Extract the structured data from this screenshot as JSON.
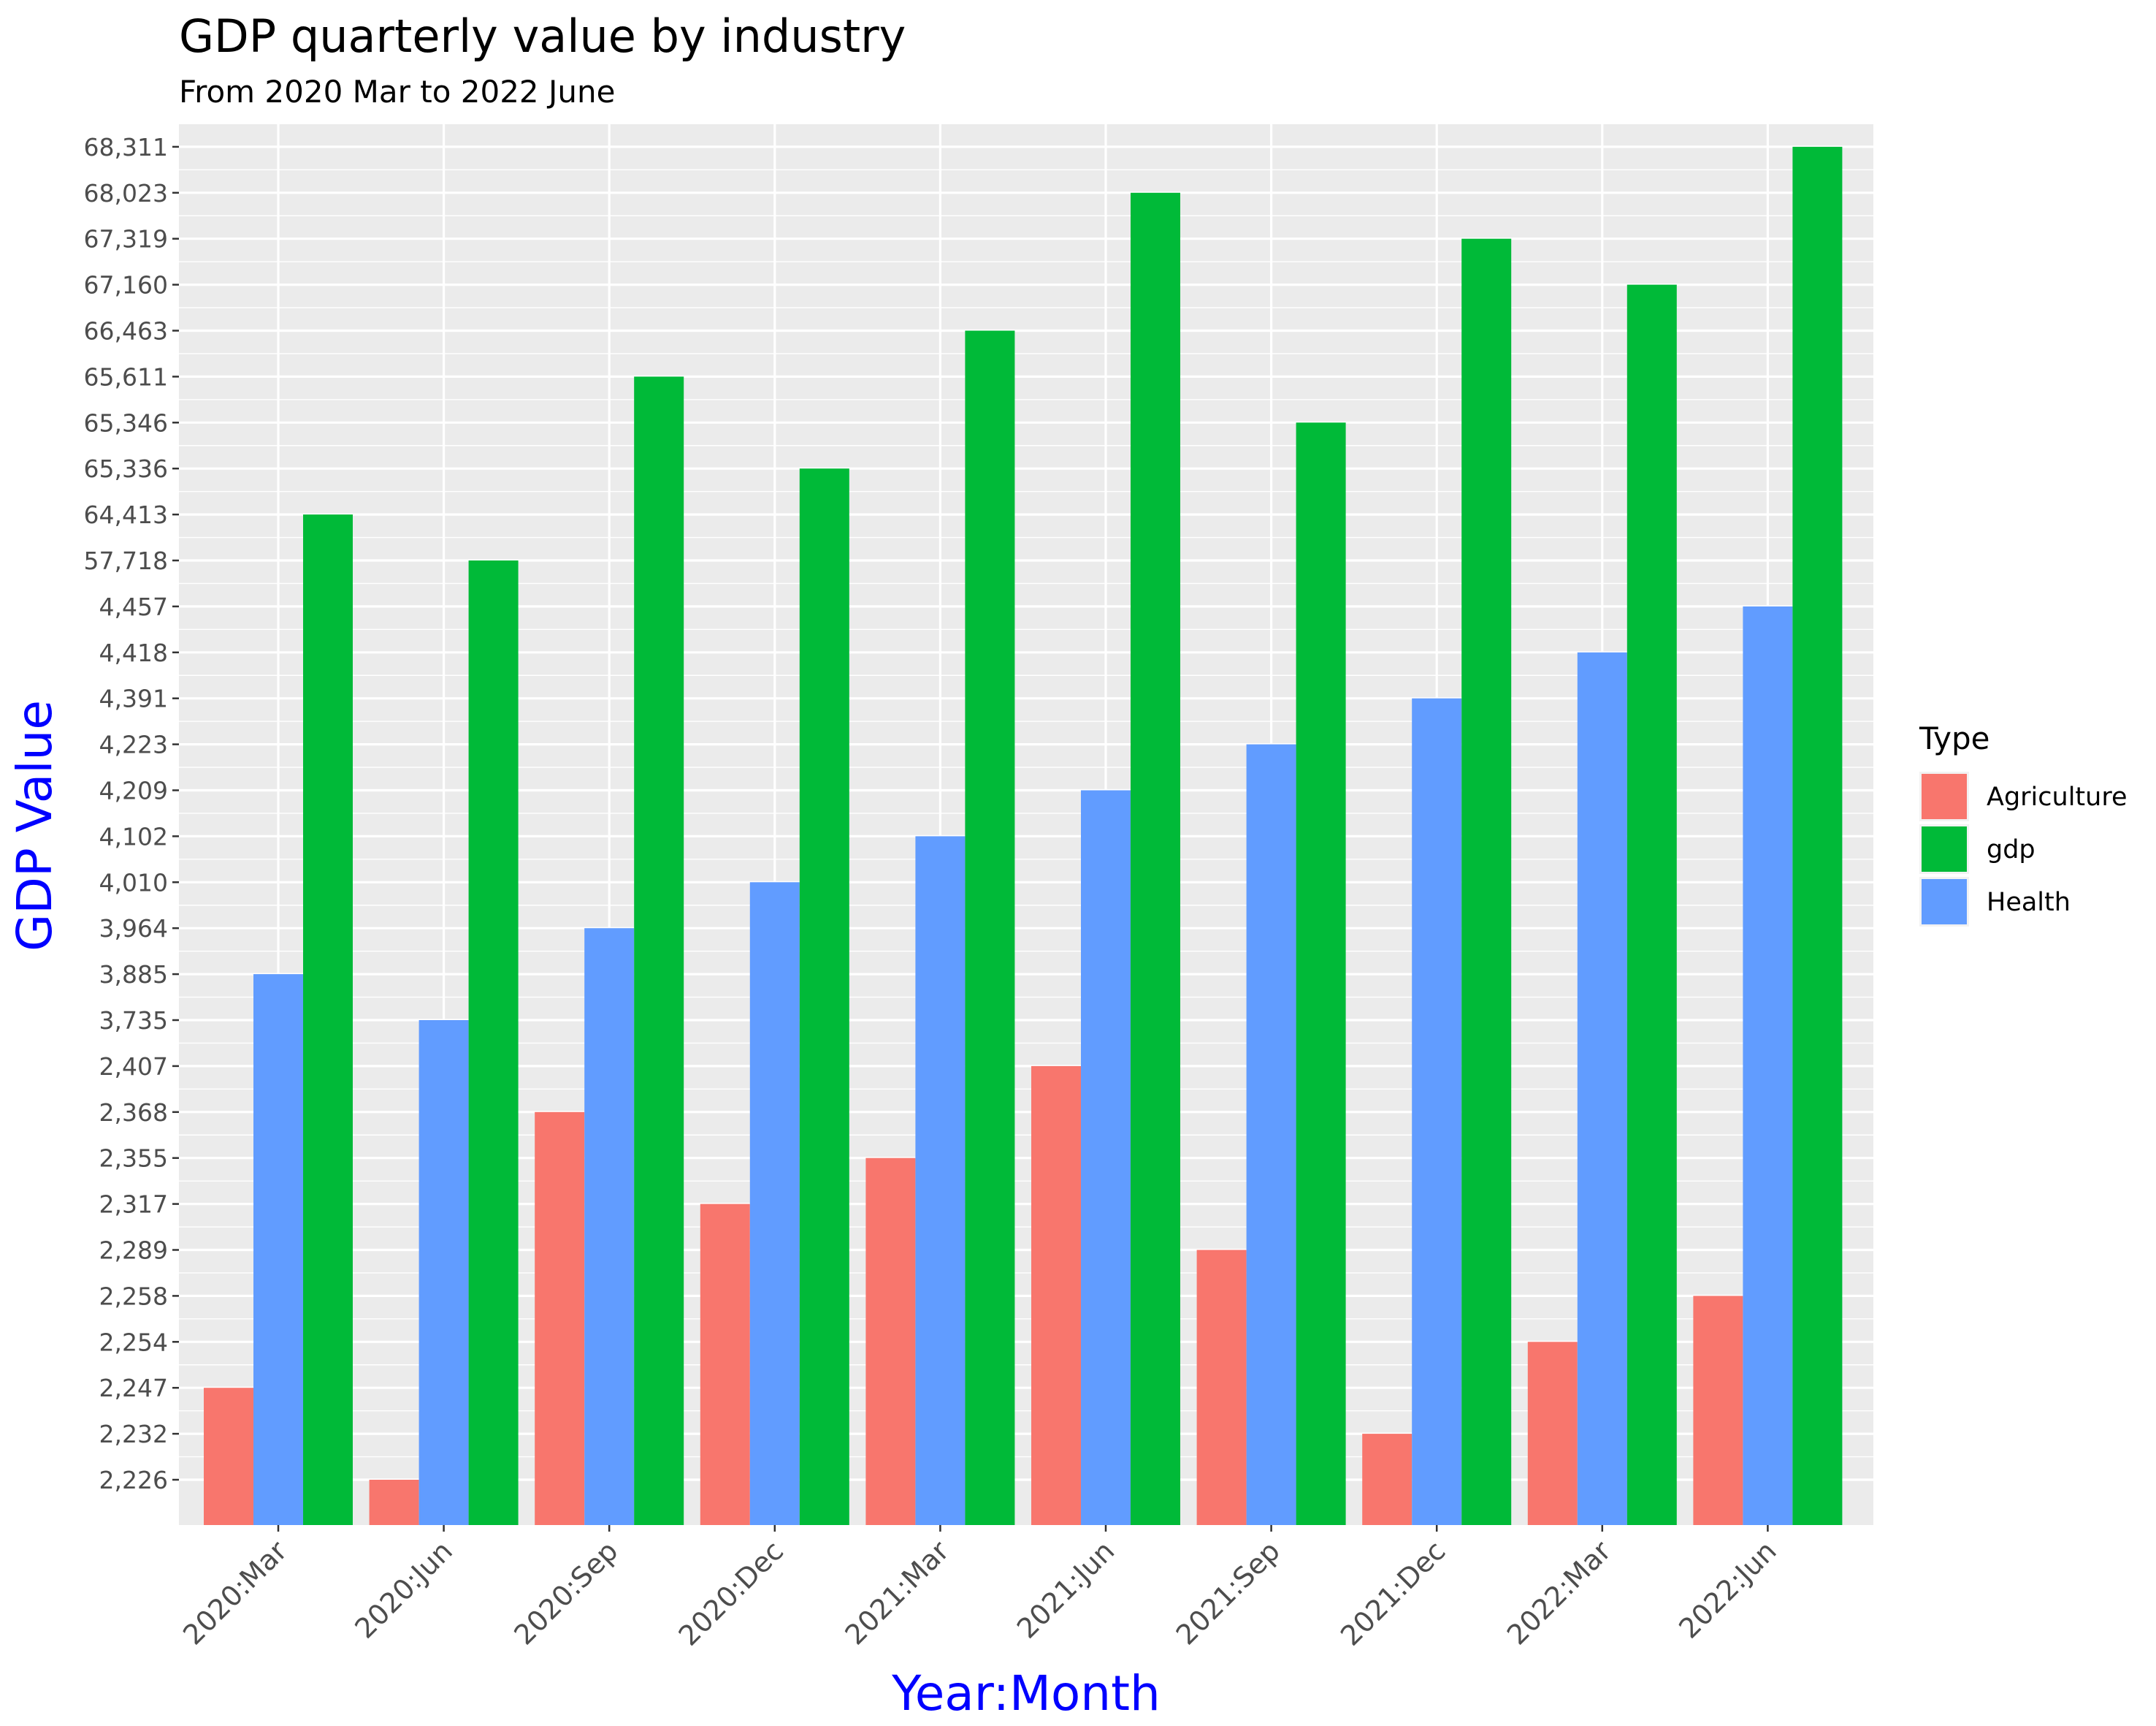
{
  "chart_data": {
    "type": "bar",
    "title": "GDP quarterly value by industry",
    "subtitle": "From 2020 Mar to 2022 June",
    "xlabel": "Year:Month",
    "ylabel": "GDP Value",
    "categories": [
      "2020:Mar",
      "2020:Jun",
      "2020:Sep",
      "2020:Dec",
      "2021:Mar",
      "2021:Jun",
      "2021:Sep",
      "2021:Dec",
      "2022:Mar",
      "2022:Jun"
    ],
    "y_scale": "discrete",
    "y_tick_labels": [
      "2,226",
      "2,232",
      "2,247",
      "2,254",
      "2,258",
      "2,289",
      "2,317",
      "2,355",
      "2,368",
      "2,407",
      "3,735",
      "3,885",
      "3,964",
      "4,010",
      "4,102",
      "4,209",
      "4,223",
      "4,391",
      "4,418",
      "4,457",
      "57,718",
      "64,413",
      "65,336",
      "65,346",
      "65,611",
      "66,463",
      "67,160",
      "67,319",
      "68,023",
      "68,311"
    ],
    "series": [
      {
        "name": "Agriculture",
        "color": "#F8766D",
        "values": [
          2247,
          2226,
          2368,
          2317,
          2355,
          2407,
          2289,
          2232,
          2254,
          2258
        ]
      },
      {
        "name": "Health",
        "color": "#619CFF",
        "values": [
          3885,
          3735,
          3964,
          4010,
          4102,
          4209,
          4223,
          4391,
          4418,
          4457
        ]
      },
      {
        "name": "gdp",
        "color": "#00BA38",
        "values": [
          64413,
          57718,
          65611,
          65336,
          66463,
          68023,
          65346,
          67319,
          67160,
          68311
        ]
      }
    ],
    "legend": {
      "title": "Type",
      "position": "right",
      "entries": [
        {
          "name": "Agriculture",
          "color": "#F8766D"
        },
        {
          "name": "gdp",
          "color": "#00BA38"
        },
        {
          "name": "Health",
          "color": "#619CFF"
        }
      ]
    },
    "grid": true,
    "panel_background": "#EBEBEB"
  }
}
